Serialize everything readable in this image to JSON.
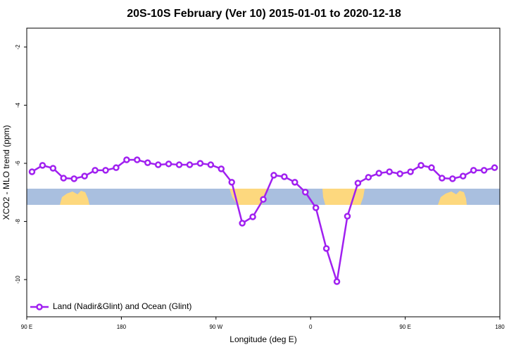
{
  "chart_data": {
    "type": "line",
    "title": "20S-10S February (Ver 10)   2015-01-01 to 2020-12-18",
    "xlabel": "Longitude (deg E)",
    "ylabel": "XCO2 - MLO trend (ppm)",
    "x": [
      95,
      105,
      115,
      125,
      135,
      145,
      155,
      165,
      175,
      185,
      195,
      205,
      215,
      225,
      235,
      245,
      255,
      265,
      275,
      285,
      295,
      305,
      315,
      325,
      335,
      345,
      355,
      365,
      375,
      385,
      395,
      405,
      415,
      425,
      435,
      445,
      455,
      465,
      475,
      485,
      495,
      505,
      515,
      525,
      535
    ],
    "series": [
      {
        "name": "Land (Nadir&Glint) and Ocean (Glint)",
        "color": "#a020f0",
        "values": [
          -6.29,
          -6.07,
          -6.17,
          -6.51,
          -6.53,
          -6.44,
          -6.24,
          -6.24,
          -6.15,
          -5.88,
          -5.88,
          -5.98,
          -6.05,
          -6.02,
          -6.05,
          -6.05,
          -6.0,
          -6.05,
          -6.19,
          -6.65,
          -8.06,
          -7.84,
          -7.24,
          -6.41,
          -6.46,
          -6.65,
          -6.99,
          -7.53,
          -8.93,
          -10.07,
          -7.82,
          -6.68,
          -6.48,
          -6.34,
          -6.29,
          -6.36,
          -6.29,
          -6.07,
          -6.15,
          -6.51,
          -6.53,
          -6.44,
          -6.24,
          -6.24,
          -6.15
        ]
      }
    ],
    "xlim": [
      90,
      540
    ],
    "xticks": [
      {
        "value": 90,
        "label": "90 E"
      },
      180,
      {
        "value": 270,
        "label": "90 W"
      },
      {
        "value": 360,
        "label": "0"
      },
      {
        "value": 450,
        "label": "90 E"
      },
      {
        "value": 540,
        "label": "180"
      }
    ],
    "ylim": [
      -11.28,
      -1.35
    ],
    "yticks": [
      -2,
      -4,
      -6,
      -8,
      -10
    ],
    "legend": "bottom-left"
  }
}
